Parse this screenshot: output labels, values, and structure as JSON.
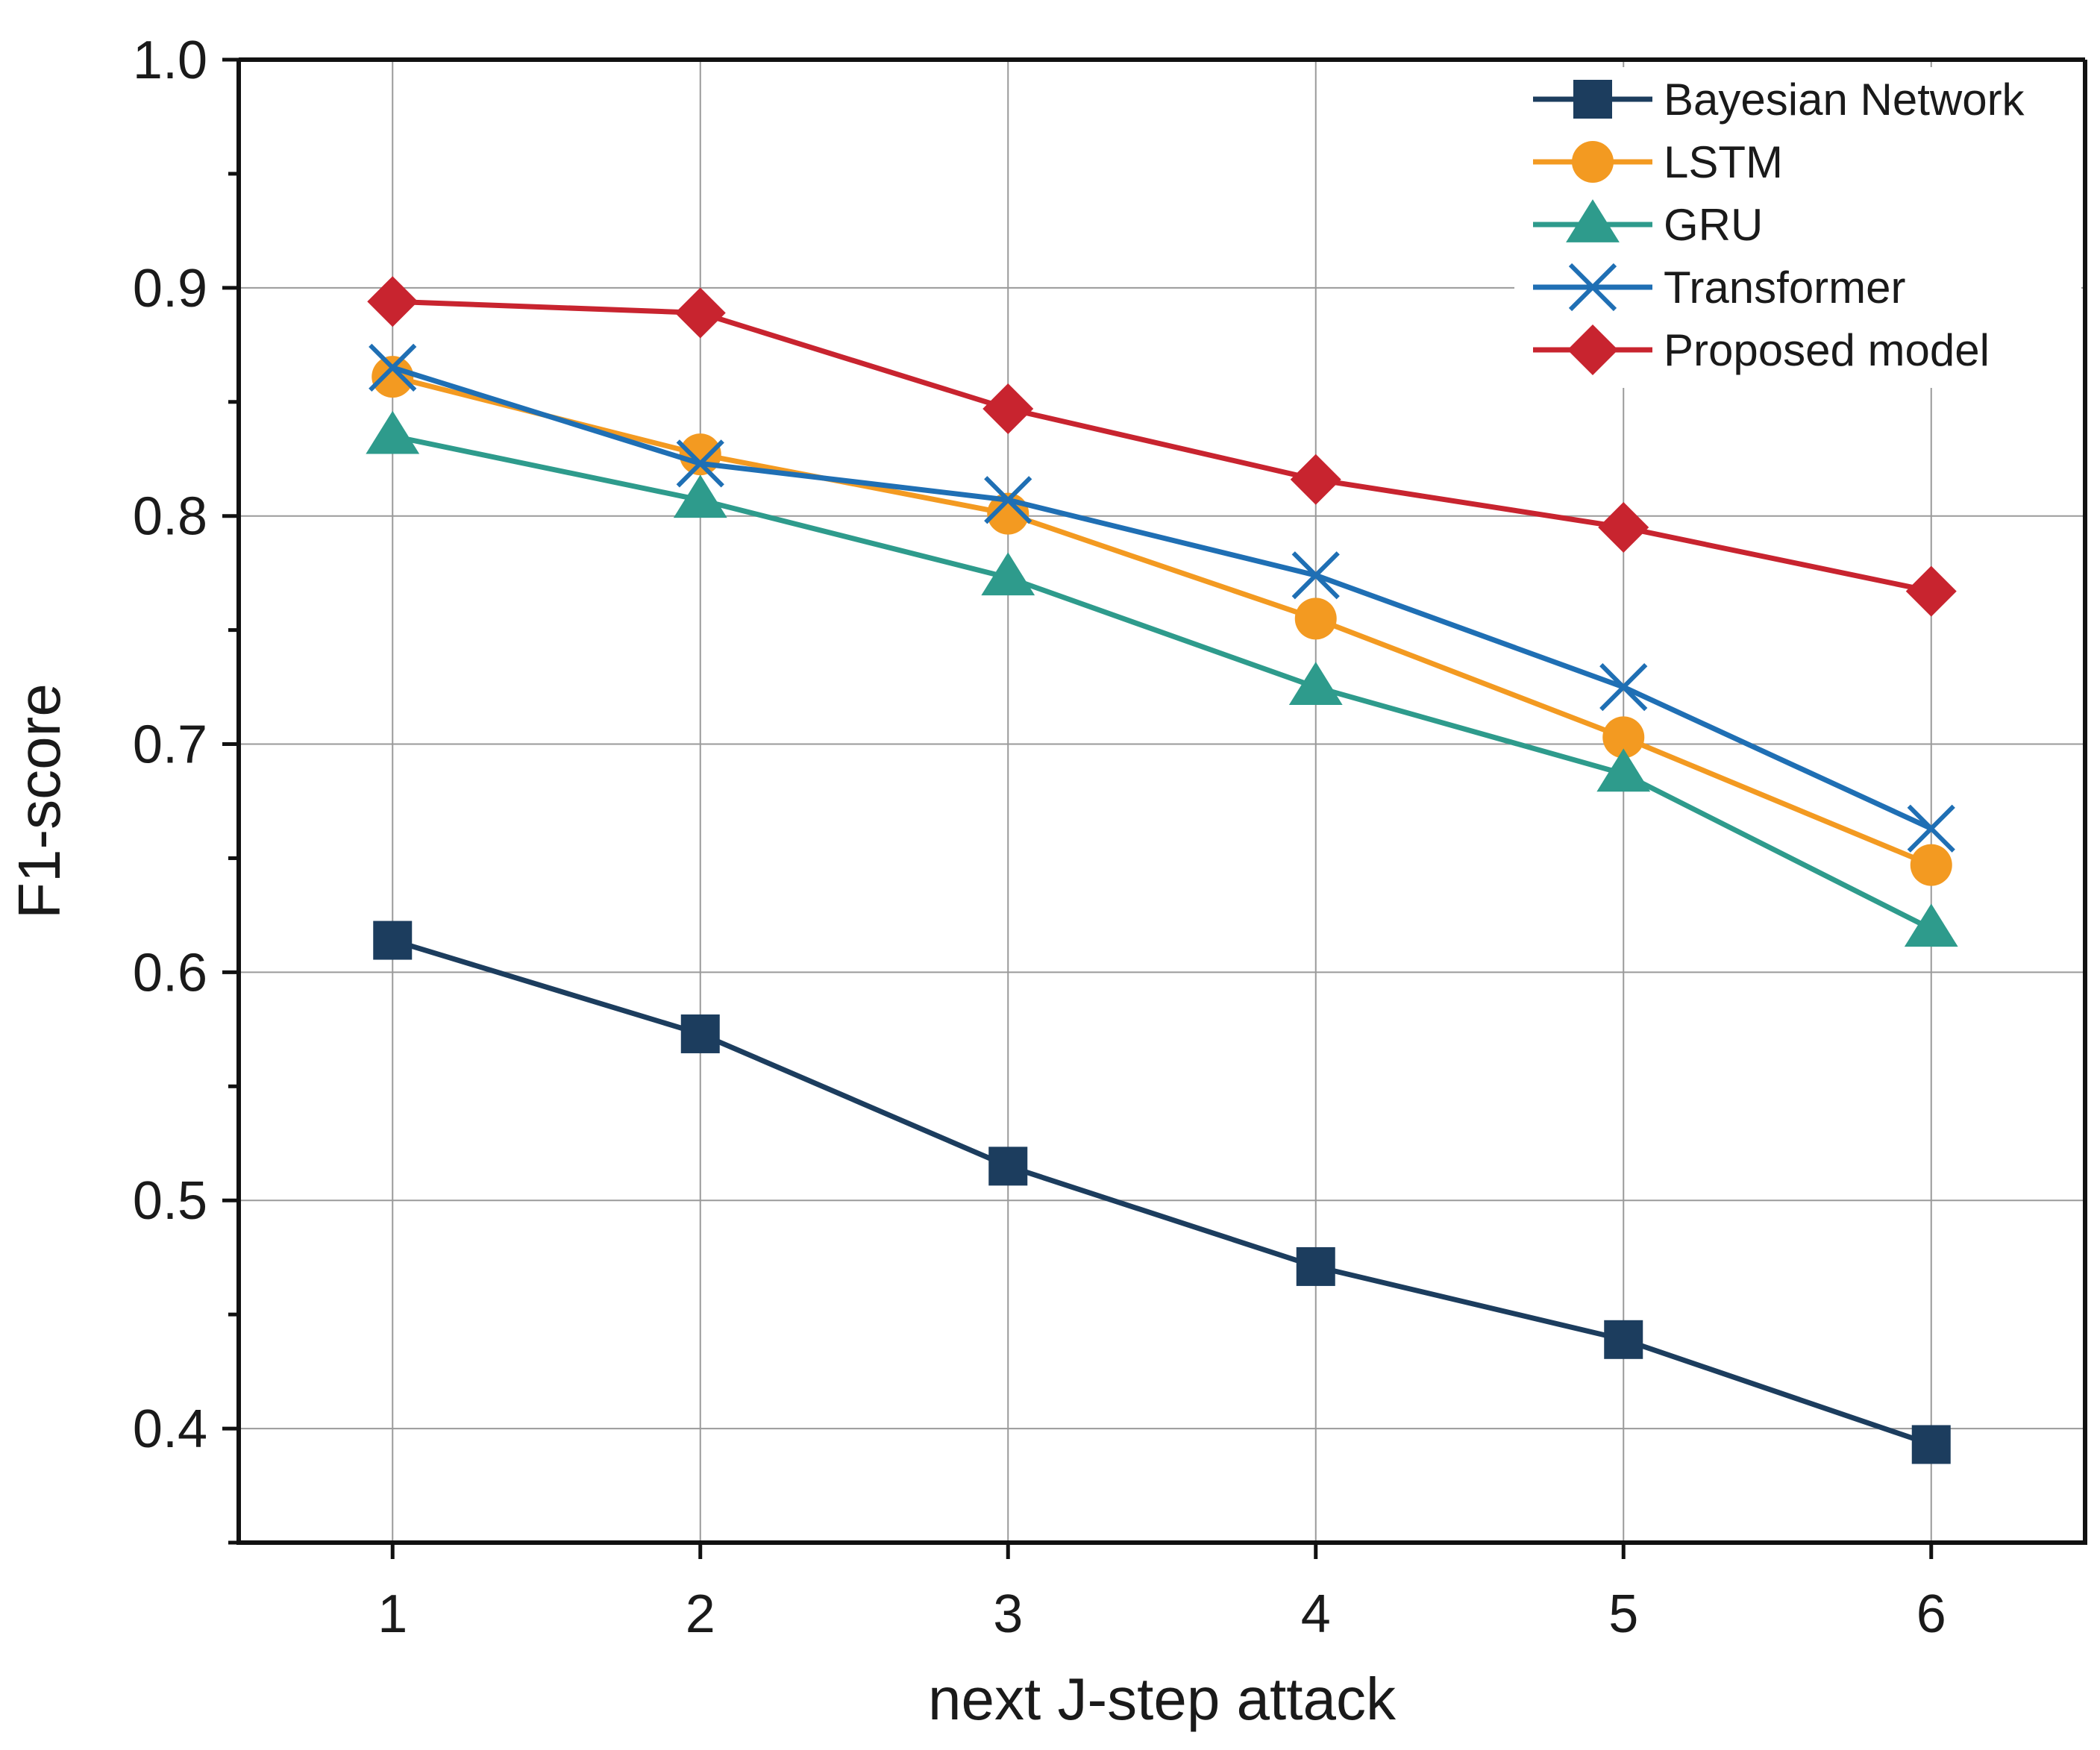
{
  "chart_data": {
    "type": "line",
    "title": "",
    "xlabel": "next J-step attack",
    "ylabel": "F1-score",
    "x": [
      1,
      2,
      3,
      4,
      5,
      6
    ],
    "x_ticks": [
      "1",
      "2",
      "3",
      "4",
      "5",
      "6"
    ],
    "xlim": [
      0.5,
      6.5
    ],
    "ylim": [
      0.35,
      1.0
    ],
    "y_ticks": [
      "0.4",
      "0.5",
      "0.6",
      "0.7",
      "0.8",
      "0.9",
      "1.0"
    ],
    "y_tick_values": [
      0.4,
      0.5,
      0.6,
      0.7,
      0.8,
      0.9,
      1.0
    ],
    "grid": true,
    "legend_position": "top-right",
    "series": [
      {
        "name": "Bayesian Network",
        "color": "#1c3d5e",
        "marker": "square",
        "values": [
          0.614,
          0.573,
          0.515,
          0.471,
          0.439,
          0.393
        ]
      },
      {
        "name": "LSTM",
        "color": "#f39a21",
        "marker": "circle",
        "values": [
          0.861,
          0.827,
          0.801,
          0.755,
          0.703,
          0.647
        ]
      },
      {
        "name": "GRU",
        "color": "#2e9b8c",
        "marker": "triangle",
        "values": [
          0.835,
          0.807,
          0.773,
          0.725,
          0.687,
          0.619
        ]
      },
      {
        "name": "Transformer",
        "color": "#1f6fb4",
        "marker": "x",
        "values": [
          0.865,
          0.823,
          0.807,
          0.774,
          0.725,
          0.663
        ]
      },
      {
        "name": "Proposed model",
        "color": "#c8242f",
        "marker": "diamond",
        "values": [
          0.894,
          0.889,
          0.847,
          0.816,
          0.795,
          0.767
        ]
      }
    ]
  }
}
